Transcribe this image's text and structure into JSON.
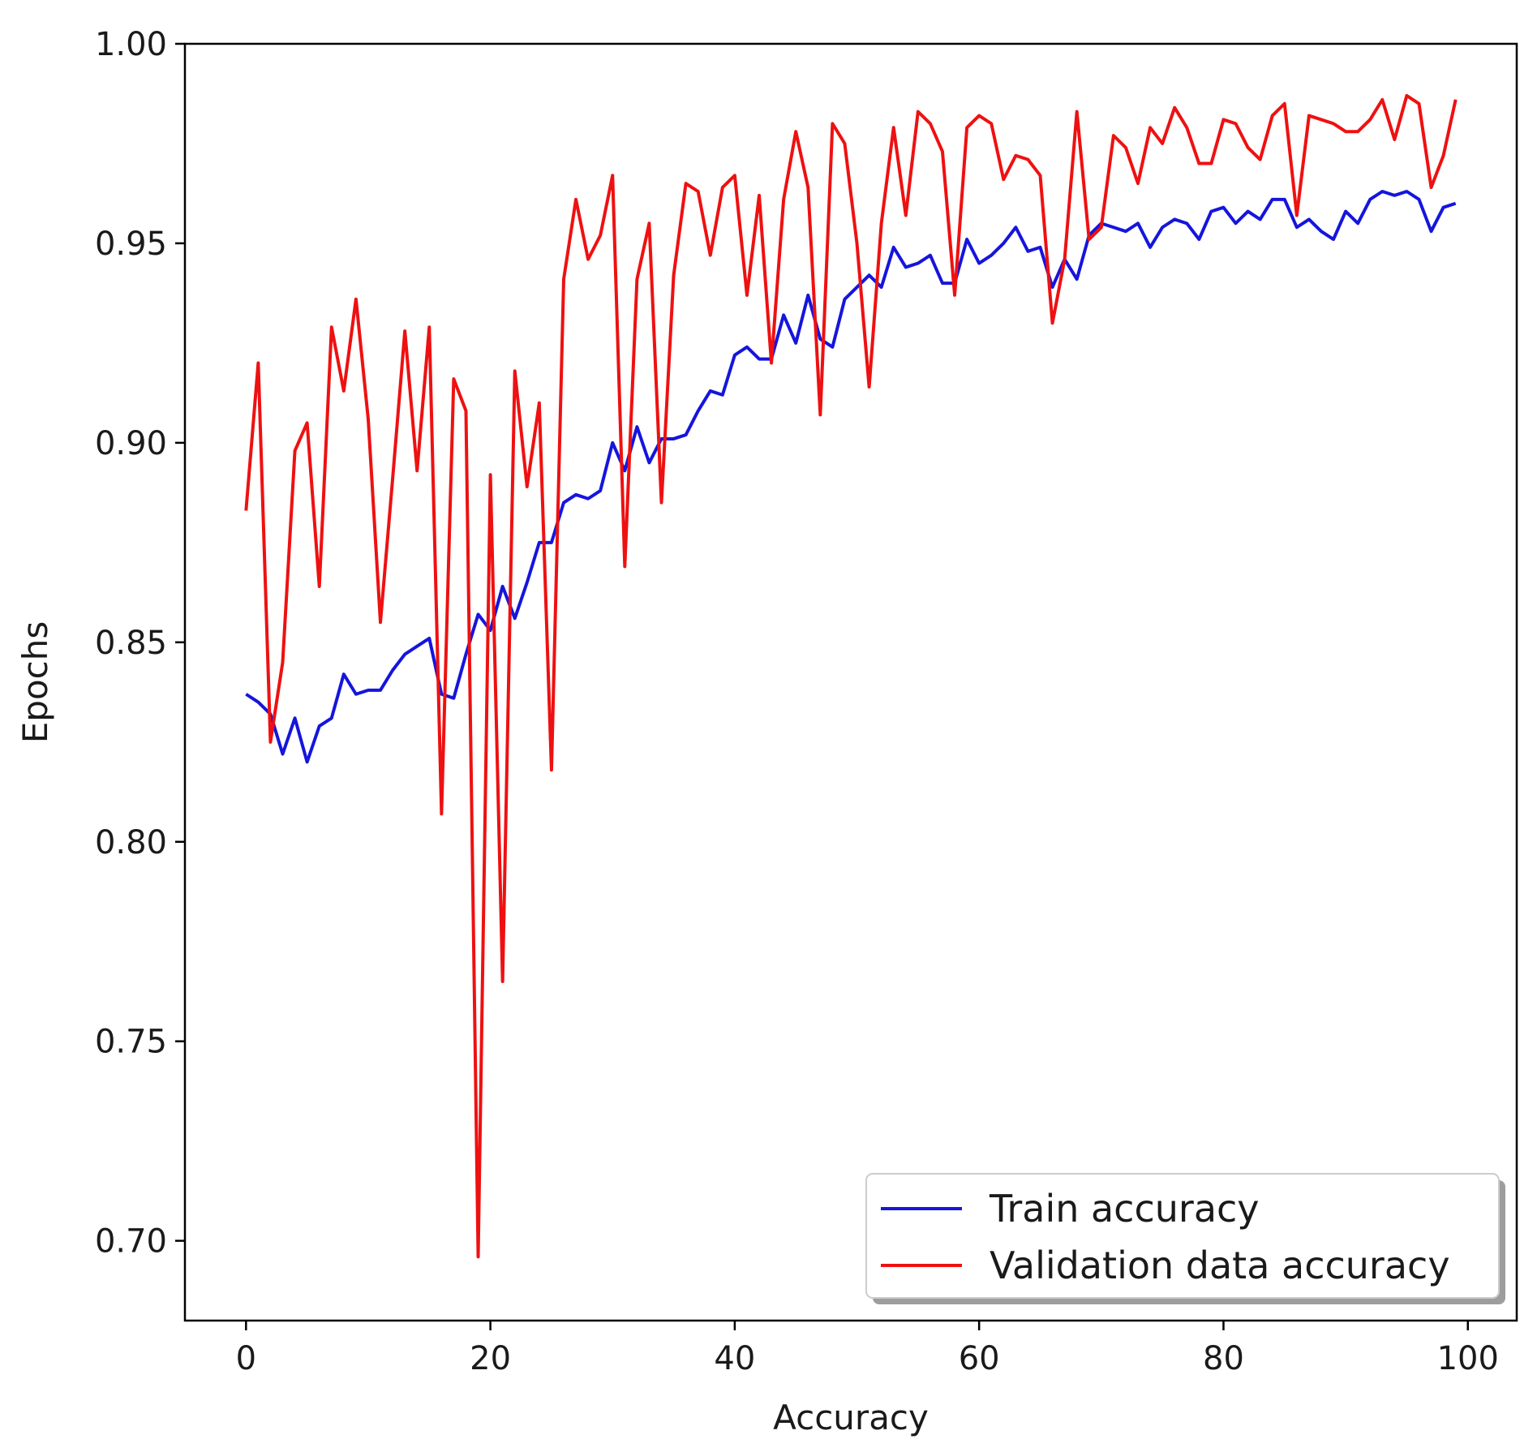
{
  "chart_data": {
    "type": "line",
    "title": "",
    "xlabel": "Accuracy",
    "ylabel": "Epochs",
    "xlim": [
      -5,
      104
    ],
    "ylim": [
      0.68,
      1.0
    ],
    "xticks": [
      0,
      20,
      40,
      60,
      80,
      100
    ],
    "xtick_labels": [
      "0",
      "20",
      "40",
      "60",
      "80",
      "100"
    ],
    "yticks": [
      0.7,
      0.75,
      0.8,
      0.85,
      0.9,
      0.95,
      1.0
    ],
    "ytick_labels": [
      "0.70",
      "0.75",
      "0.80",
      "0.85",
      "0.90",
      "0.95",
      "1.00"
    ],
    "grid": false,
    "legend_position": "bottom-right",
    "series": [
      {
        "name": "Train accuracy",
        "color": "#1515dd",
        "x": [
          0,
          1,
          2,
          3,
          4,
          5,
          6,
          7,
          8,
          9,
          10,
          11,
          12,
          13,
          14,
          15,
          16,
          17,
          18,
          19,
          20,
          21,
          22,
          23,
          24,
          25,
          26,
          27,
          28,
          29,
          30,
          31,
          32,
          33,
          34,
          35,
          36,
          37,
          38,
          39,
          40,
          41,
          42,
          43,
          44,
          45,
          46,
          47,
          48,
          49,
          50,
          51,
          52,
          53,
          54,
          55,
          56,
          57,
          58,
          59,
          60,
          61,
          62,
          63,
          64,
          65,
          66,
          67,
          68,
          69,
          70,
          71,
          72,
          73,
          74,
          75,
          76,
          77,
          78,
          79,
          80,
          81,
          82,
          83,
          84,
          85,
          86,
          87,
          88,
          89,
          90,
          91,
          92,
          93,
          94,
          95,
          96,
          97,
          98,
          99
        ],
        "values": [
          0.837,
          0.835,
          0.832,
          0.822,
          0.831,
          0.82,
          0.829,
          0.831,
          0.842,
          0.837,
          0.838,
          0.838,
          0.843,
          0.847,
          0.849,
          0.851,
          0.837,
          0.836,
          0.847,
          0.857,
          0.853,
          0.864,
          0.856,
          0.865,
          0.875,
          0.875,
          0.885,
          0.887,
          0.886,
          0.888,
          0.9,
          0.893,
          0.904,
          0.895,
          0.901,
          0.901,
          0.902,
          0.908,
          0.913,
          0.912,
          0.922,
          0.924,
          0.921,
          0.921,
          0.932,
          0.925,
          0.937,
          0.926,
          0.924,
          0.936,
          0.939,
          0.942,
          0.939,
          0.949,
          0.944,
          0.945,
          0.947,
          0.94,
          0.94,
          0.951,
          0.945,
          0.947,
          0.95,
          0.954,
          0.948,
          0.949,
          0.939,
          0.946,
          0.941,
          0.952,
          0.955,
          0.954,
          0.953,
          0.955,
          0.949,
          0.954,
          0.956,
          0.955,
          0.951,
          0.958,
          0.959,
          0.955,
          0.958,
          0.956,
          0.961,
          0.961,
          0.954,
          0.956,
          0.953,
          0.951,
          0.958,
          0.955,
          0.961,
          0.963,
          0.962,
          0.963,
          0.961,
          0.953,
          0.959,
          0.96
        ]
      },
      {
        "name": "Validation data accuracy",
        "color": "#ee1111",
        "x": [
          0,
          1,
          2,
          3,
          4,
          5,
          6,
          7,
          8,
          9,
          10,
          11,
          12,
          13,
          14,
          15,
          16,
          17,
          18,
          19,
          20,
          21,
          22,
          23,
          24,
          25,
          26,
          27,
          28,
          29,
          30,
          31,
          32,
          33,
          34,
          35,
          36,
          37,
          38,
          39,
          40,
          41,
          42,
          43,
          44,
          45,
          46,
          47,
          48,
          49,
          50,
          51,
          52,
          53,
          54,
          55,
          56,
          57,
          58,
          59,
          60,
          61,
          62,
          63,
          64,
          65,
          66,
          67,
          68,
          69,
          70,
          71,
          72,
          73,
          74,
          75,
          76,
          77,
          78,
          79,
          80,
          81,
          82,
          83,
          84,
          85,
          86,
          87,
          88,
          89,
          90,
          91,
          92,
          93,
          94,
          95,
          96,
          97,
          98,
          99
        ],
        "values": [
          0.883,
          0.92,
          0.825,
          0.845,
          0.898,
          0.905,
          0.864,
          0.929,
          0.913,
          0.936,
          0.906,
          0.855,
          0.891,
          0.928,
          0.893,
          0.929,
          0.807,
          0.916,
          0.908,
          0.696,
          0.892,
          0.765,
          0.918,
          0.889,
          0.91,
          0.818,
          0.941,
          0.961,
          0.946,
          0.952,
          0.967,
          0.869,
          0.941,
          0.955,
          0.885,
          0.942,
          0.965,
          0.963,
          0.947,
          0.964,
          0.967,
          0.937,
          0.962,
          0.92,
          0.961,
          0.978,
          0.964,
          0.907,
          0.98,
          0.975,
          0.95,
          0.914,
          0.955,
          0.979,
          0.957,
          0.983,
          0.98,
          0.973,
          0.937,
          0.979,
          0.982,
          0.98,
          0.966,
          0.972,
          0.971,
          0.967,
          0.93,
          0.946,
          0.983,
          0.951,
          0.954,
          0.977,
          0.974,
          0.965,
          0.979,
          0.975,
          0.984,
          0.979,
          0.97,
          0.97,
          0.981,
          0.98,
          0.974,
          0.971,
          0.982,
          0.985,
          0.957,
          0.982,
          0.981,
          0.98,
          0.978,
          0.978,
          0.981,
          0.986,
          0.976,
          0.987,
          0.985,
          0.964,
          0.972,
          0.986
        ]
      }
    ]
  }
}
